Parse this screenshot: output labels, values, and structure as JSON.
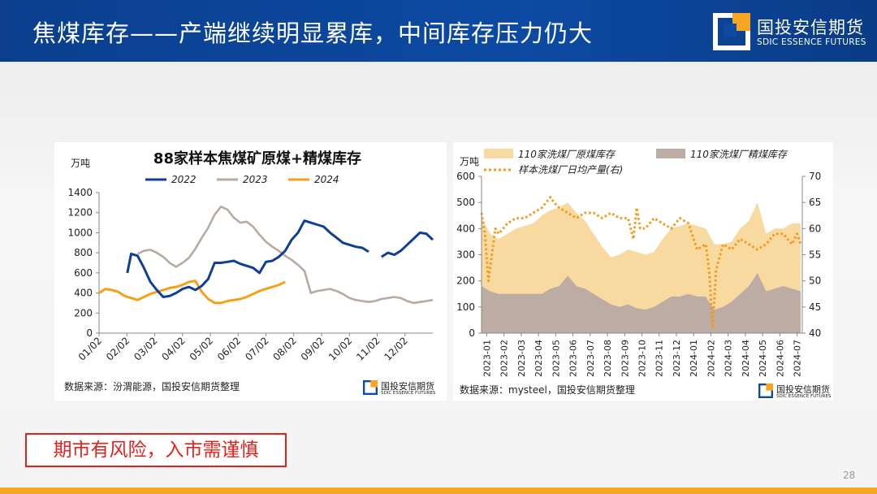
{
  "header": {
    "title": "焦煤库存——产端继续明显累库，中间库存压力仍大"
  },
  "logo": {
    "cn": "国投安信期货",
    "en": "SDIC ESSENCE FUTURES"
  },
  "colors": {
    "c2022": "#0e3f96",
    "c2023": "#b8aaa3",
    "c2024": "#f5a117",
    "raw": "#f8d9a0",
    "fine": "#bdaca4",
    "daily": "#f19a1c"
  },
  "chart1_meta": {
    "source": "数据来源：汾渭能源，国投安信期货整理"
  },
  "chart2_meta": {
    "source": "数据来源：mysteel，国投安信期货整理"
  },
  "footer": {
    "risk": "期市有风险，入市需谨慎",
    "page": "28"
  },
  "chart_data": [
    {
      "type": "line",
      "title": "88家样本焦煤矿原煤+精煤库存",
      "unit_label": "万吨",
      "ylim": [
        0,
        1400
      ],
      "yticks": [
        0,
        200,
        400,
        600,
        800,
        1000,
        1200,
        1400
      ],
      "xticks": [
        "01/02",
        "02/02",
        "03/02",
        "04/02",
        "05/02",
        "06/02",
        "07/02",
        "08/02",
        "09/02",
        "10/02",
        "11/02",
        "12/02"
      ],
      "series": [
        {
          "name": "2022",
          "x": [
            4.4,
            5,
            6,
            7,
            8,
            9,
            10,
            11,
            12,
            13,
            14,
            15,
            16,
            17,
            18,
            19,
            20,
            21,
            22,
            23,
            24,
            25,
            26,
            27,
            28,
            29,
            30,
            31,
            32,
            33,
            34,
            35,
            36,
            37,
            38,
            39,
            40,
            41,
            42,
            44,
            45,
            46,
            47,
            48,
            49,
            50,
            51,
            52
          ],
          "values": [
            600,
            790,
            770,
            650,
            510,
            430,
            360,
            370,
            400,
            440,
            460,
            430,
            470,
            540,
            700,
            700,
            710,
            720,
            690,
            670,
            650,
            600,
            710,
            720,
            760,
            820,
            930,
            1000,
            1120,
            1100,
            1080,
            1060,
            1000,
            950,
            900,
            880,
            860,
            850,
            810,
            760,
            800,
            780,
            820,
            880,
            940,
            1000,
            990,
            930
          ]
        },
        {
          "name": "2023",
          "x": [
            0,
            2,
            4,
            6,
            7,
            8,
            9,
            10,
            11,
            12,
            13,
            14,
            15,
            16,
            17,
            18,
            19,
            20,
            21,
            22,
            23,
            24,
            25,
            26,
            27,
            28,
            29,
            30,
            31,
            32,
            33,
            34,
            35,
            36,
            37,
            38,
            39,
            40,
            41,
            42,
            43,
            44,
            45,
            46,
            47,
            48,
            49,
            50,
            51,
            52
          ],
          "values": [
            700,
            720,
            760,
            790,
            820,
            830,
            800,
            760,
            700,
            660,
            700,
            750,
            840,
            950,
            1050,
            1180,
            1260,
            1230,
            1150,
            1100,
            1110,
            1060,
            980,
            910,
            860,
            820,
            770,
            730,
            680,
            620,
            400,
            420,
            430,
            440,
            420,
            390,
            350,
            330,
            320,
            310,
            320,
            340,
            350,
            360,
            350,
            320,
            300,
            310,
            320,
            330
          ]
        },
        {
          "name": "2024",
          "x": [
            0,
            1,
            2,
            3,
            4,
            5,
            6,
            7,
            8,
            9,
            10,
            11,
            12,
            13,
            14,
            15,
            16,
            17,
            18,
            19,
            20,
            21,
            22,
            23,
            24,
            25,
            26,
            27,
            28,
            29
          ],
          "values": [
            400,
            440,
            430,
            410,
            370,
            350,
            330,
            360,
            390,
            410,
            430,
            450,
            460,
            480,
            510,
            520,
            410,
            340,
            300,
            300,
            320,
            330,
            340,
            360,
            390,
            420,
            440,
            460,
            480,
            510
          ]
        }
      ]
    },
    {
      "type": "area",
      "unit_label": "万吨",
      "ylim": [
        0,
        600
      ],
      "yticks": [
        0,
        100,
        200,
        300,
        400,
        500,
        600
      ],
      "y2lim": [
        40,
        70
      ],
      "y2ticks": [
        40,
        45,
        50,
        55,
        60,
        65,
        70
      ],
      "xticks": [
        "2023-01",
        "2023-02",
        "2023-03",
        "2023-04",
        "2023-05",
        "2023-06",
        "2023-07",
        "2023-08",
        "2023-09",
        "2023-10",
        "2023-11",
        "2023-12",
        "2024-01",
        "2024-02",
        "2024-03",
        "2024-04",
        "2024-05",
        "2024-06",
        "2024-07"
      ],
      "series": [
        {
          "name": "110家洗煤厂原煤库存",
          "axis": "left",
          "style": "area",
          "x": [
            0,
            0.5,
            1,
            1.5,
            2,
            2.5,
            3,
            3.5,
            4,
            4.5,
            5,
            5.5,
            6,
            6.5,
            7,
            7.5,
            8,
            8.5,
            9,
            9.5,
            10,
            10.5,
            11,
            11.5,
            12,
            12.5,
            13,
            13.5,
            14,
            14.5,
            15,
            15.5,
            16,
            16.5,
            17,
            17.5,
            18,
            18.5
          ],
          "values": [
            440,
            380,
            360,
            380,
            400,
            410,
            420,
            450,
            470,
            480,
            500,
            460,
            430,
            380,
            330,
            290,
            300,
            320,
            310,
            300,
            310,
            360,
            400,
            410,
            420,
            410,
            400,
            340,
            340,
            350,
            400,
            430,
            500,
            380,
            400,
            400,
            420,
            420
          ]
        },
        {
          "name": "110家洗煤厂精煤库存",
          "axis": "left",
          "style": "area",
          "x": [
            0,
            0.5,
            1,
            1.5,
            2,
            2.5,
            3,
            3.5,
            4,
            4.5,
            5,
            5.5,
            6,
            6.5,
            7,
            7.5,
            8,
            8.5,
            9,
            9.5,
            10,
            10.5,
            11,
            11.5,
            12,
            12.5,
            13,
            13.5,
            14,
            14.5,
            15,
            15.5,
            16,
            16.5,
            17,
            17.5,
            18,
            18.5
          ],
          "values": [
            180,
            160,
            150,
            150,
            150,
            150,
            150,
            150,
            170,
            180,
            220,
            180,
            170,
            150,
            130,
            110,
            100,
            110,
            95,
            90,
            100,
            120,
            140,
            140,
            150,
            140,
            140,
            90,
            100,
            120,
            150,
            180,
            230,
            160,
            170,
            180,
            170,
            160
          ]
        },
        {
          "name": "样本洗煤厂日均产量(右)",
          "axis": "right",
          "style": "dotted",
          "x": [
            0,
            0.2,
            0.4,
            0.6,
            0.8,
            1,
            1.5,
            2,
            2.5,
            3,
            3.5,
            4,
            4.2,
            4.5,
            5,
            5.5,
            6,
            6.5,
            7,
            7.5,
            8,
            8.5,
            8.8,
            9,
            9.2,
            9.5,
            10,
            10.5,
            11,
            11.5,
            12,
            12.5,
            13,
            13.2,
            13.4,
            13.6,
            14,
            14.5,
            15,
            15.5,
            16,
            16.5,
            17,
            17.5,
            18,
            18.3,
            18.5
          ],
          "values": [
            63,
            59,
            50,
            55,
            60,
            59,
            61,
            62,
            62,
            63,
            64,
            66,
            65,
            64,
            63,
            62,
            63,
            63,
            62,
            63,
            62,
            62,
            58,
            64,
            60,
            60,
            62,
            61,
            60,
            62,
            61,
            56,
            57,
            52,
            41,
            52,
            57,
            56,
            58,
            57,
            56,
            57,
            59,
            59,
            57,
            59,
            57
          ]
        }
      ]
    }
  ]
}
